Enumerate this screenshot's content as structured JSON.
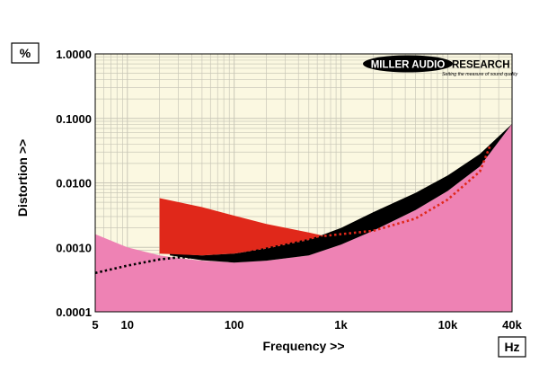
{
  "chart_data": {
    "type": "area",
    "xlabel": "Frequency >>",
    "ylabel": "Distortion >>",
    "x_unit": "Hz",
    "y_unit": "%",
    "xscale": "log",
    "yscale": "log",
    "xlim": [
      5,
      40000
    ],
    "ylim": [
      0.0001,
      1.0
    ],
    "grid": true,
    "x_ticks": [
      {
        "value": 5,
        "label": "5"
      },
      {
        "value": 10,
        "label": "10"
      },
      {
        "value": 100,
        "label": "100"
      },
      {
        "value": 1000,
        "label": "1k"
      },
      {
        "value": 10000,
        "label": "10k"
      },
      {
        "value": 40000,
        "label": "40k"
      }
    ],
    "y_ticks": [
      {
        "value": 1.0,
        "label": "1.0000"
      },
      {
        "value": 0.1,
        "label": "0.1000"
      },
      {
        "value": 0.01,
        "label": "0.0100"
      },
      {
        "value": 0.001,
        "label": "0.0010"
      },
      {
        "value": 0.0001,
        "label": "0.0001"
      }
    ],
    "series": [
      {
        "type": "area",
        "color": "#ee82b4",
        "x": [
          5,
          10,
          20,
          30,
          50,
          100,
          200,
          500,
          1000,
          2000,
          5000,
          10000,
          20000,
          40000
        ],
        "y": [
          0.0016,
          0.001,
          0.00075,
          0.00068,
          0.00062,
          0.00058,
          0.00062,
          0.00075,
          0.0011,
          0.0018,
          0.0038,
          0.0075,
          0.018,
          0.082
        ]
      },
      {
        "type": "band",
        "color": "#000000",
        "x": [
          25,
          50,
          100,
          200,
          500,
          1000,
          2000,
          5000,
          10000,
          20000,
          40000
        ],
        "y_low": [
          0.00075,
          0.00063,
          0.00058,
          0.00062,
          0.00075,
          0.0011,
          0.0018,
          0.0038,
          0.0075,
          0.018,
          0.082
        ],
        "y_high": [
          0.0008,
          0.00075,
          0.0008,
          0.00095,
          0.0013,
          0.002,
          0.0035,
          0.007,
          0.013,
          0.028,
          0.082
        ]
      },
      {
        "type": "band",
        "color": "#e0281a",
        "x": [
          20,
          50,
          100,
          200,
          500,
          700
        ],
        "y_low": [
          0.0008,
          0.00075,
          0.0008,
          0.00095,
          0.0013,
          0.0015
        ],
        "y_high": [
          0.0058,
          0.0042,
          0.0031,
          0.0023,
          0.0017,
          0.0015
        ]
      },
      {
        "type": "line",
        "style": "dotted",
        "color": "#000000",
        "x": [
          5,
          10,
          20,
          30,
          50,
          100,
          200,
          500,
          700
        ],
        "y": [
          0.0004,
          0.00052,
          0.00065,
          0.0007,
          0.0007,
          0.00075,
          0.00095,
          0.0013,
          0.0015
        ]
      },
      {
        "type": "line",
        "style": "dotted",
        "color": "#e0281a",
        "x": [
          700,
          1000,
          2000,
          5000,
          10000,
          20000,
          25000
        ],
        "y": [
          0.0015,
          0.0016,
          0.0018,
          0.0028,
          0.0055,
          0.015,
          0.038
        ]
      }
    ]
  },
  "logo": {
    "text_left": "MILLER AUDIO",
    "text_right": "RESEARCH",
    "tagline": "Setting the measure of sound quality"
  },
  "colors": {
    "plot_bg": "#fbf8e1",
    "grid": "#c9c7b8",
    "pink": "#ee82b4",
    "red": "#e0281a",
    "black": "#000000"
  }
}
